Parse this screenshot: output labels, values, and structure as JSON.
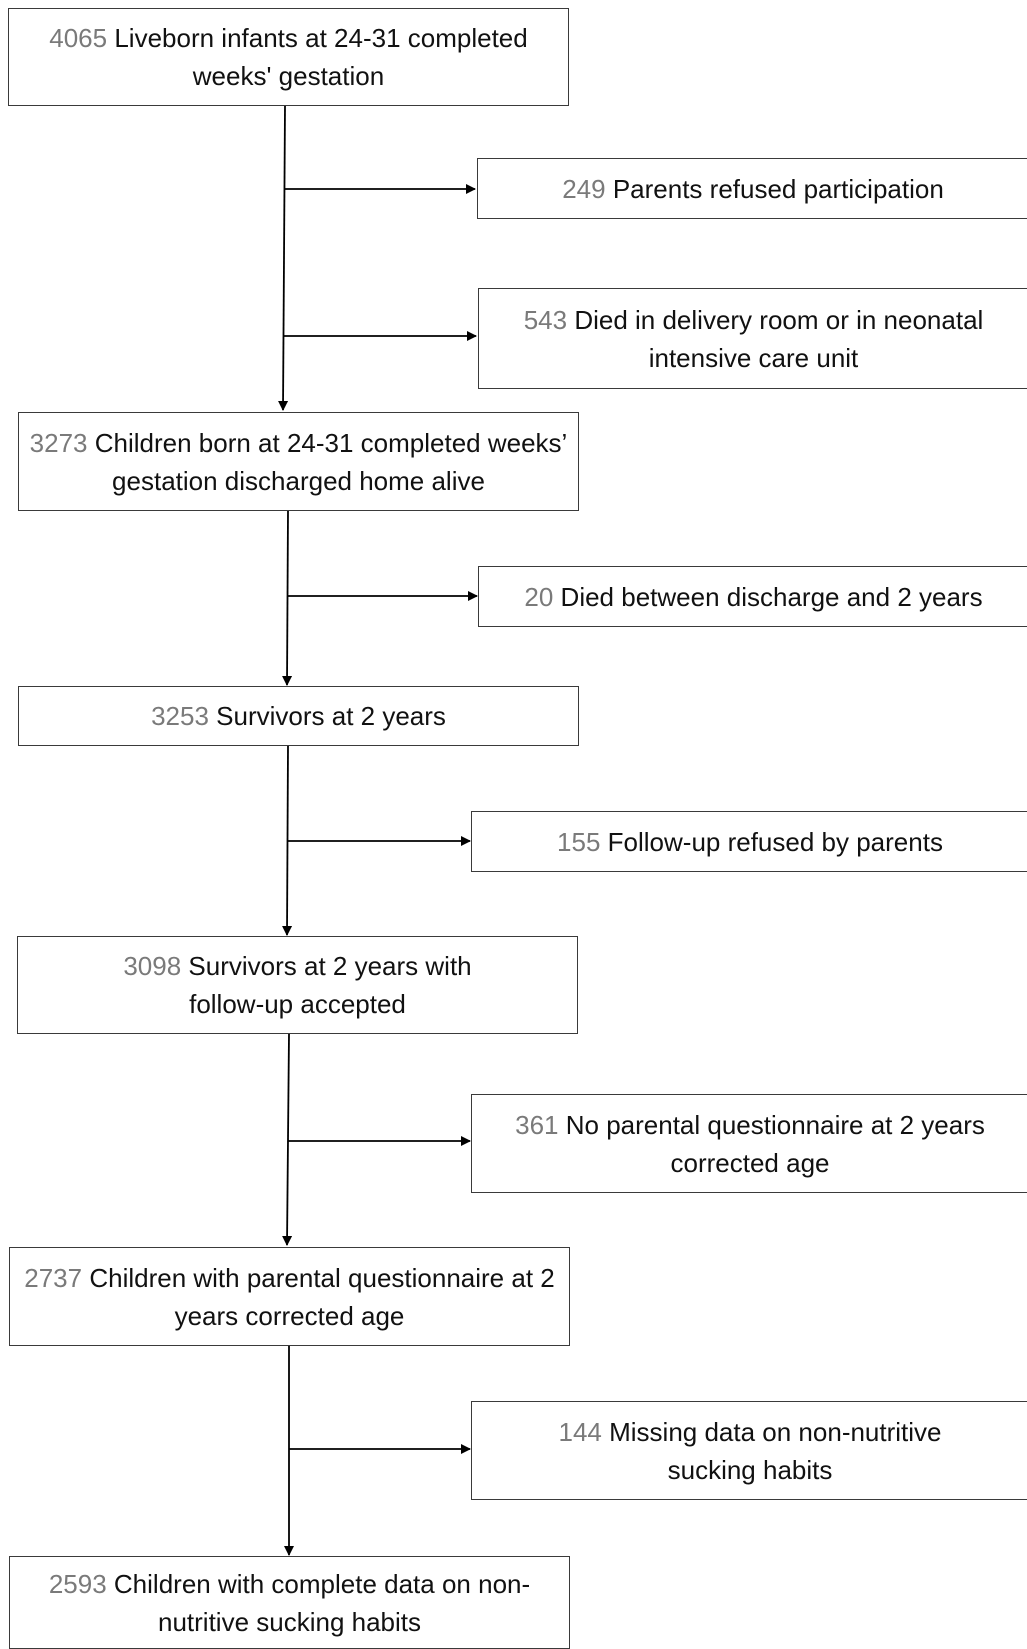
{
  "boxes": {
    "b1": {
      "count": "4065",
      "text": "Liveborn infants at 24-31 completed weeks' gestation"
    },
    "b2": {
      "count": "3273",
      "text": "Children born at 24-31 completed weeks’ gestation discharged home alive"
    },
    "b3": {
      "count": "3253",
      "text": "Survivors at 2 years"
    },
    "b4": {
      "count": "3098",
      "text": "Survivors at 2 years with follow-up accepted"
    },
    "b5": {
      "count": "2737",
      "text": "Children with parental questionnaire at 2 years corrected age"
    },
    "b6": {
      "count": "2593",
      "text": "Children with complete data on non-nutritive sucking habits"
    }
  },
  "exclusions": {
    "e1": {
      "count": "249",
      "text": "Parents refused participation"
    },
    "e2": {
      "count": "543",
      "text": "Died in delivery room or in neonatal intensive care unit"
    },
    "e3": {
      "count": "20",
      "text": "Died between discharge and 2 years"
    },
    "e4": {
      "count": "155",
      "text": "Follow-up refused by parents"
    },
    "e5": {
      "count": "361",
      "text": "No parental questionnaire at 2 years corrected age"
    },
    "e6": {
      "count": "144",
      "text": "Missing data on non-nutritive sucking habits"
    }
  }
}
